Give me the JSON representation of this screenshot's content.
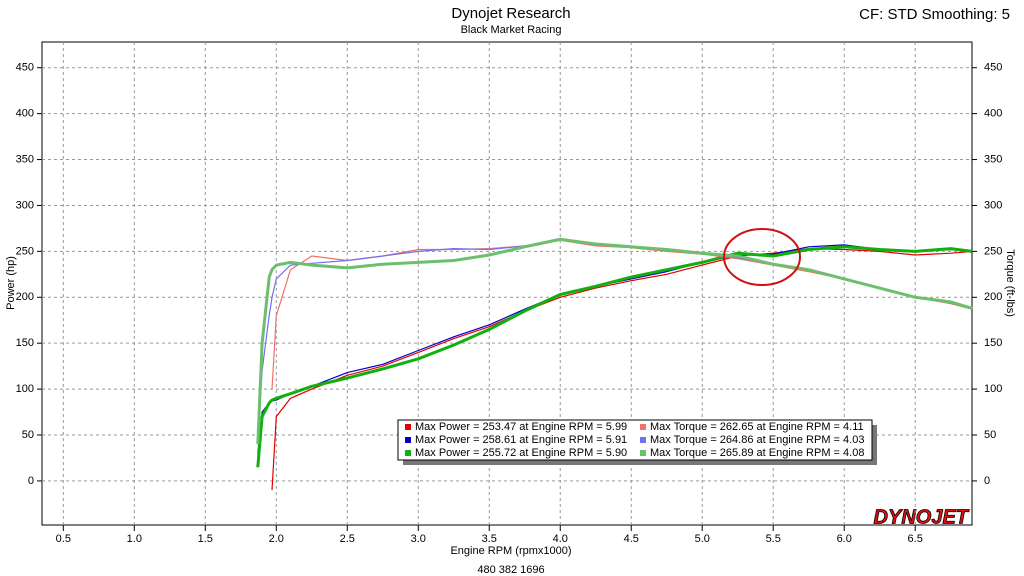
{
  "chart_data": {
    "type": "line",
    "title": "Dynojet Research",
    "subtitle": "Black Market Racing",
    "settings_label": "CF: STD Smoothing: 5",
    "x_label": "Engine RPM (rpmx1000)",
    "y_label": "Power (hp)",
    "y2_label": "Torque (ft-lbs)",
    "footer": "480 382 1696",
    "logo": "DYNOJET",
    "grid": true,
    "xlim": [
      0.35,
      6.9
    ],
    "ylim": [
      -48,
      478
    ],
    "y2lim": [
      -48,
      478
    ],
    "xticks": [
      0.5,
      {
        "value": 1,
        "label": "1.0"
      },
      1.5,
      {
        "value": 2,
        "label": "2.0"
      },
      2.5,
      {
        "value": 3,
        "label": "3.0"
      },
      3.5,
      {
        "value": 4,
        "label": "4.0"
      },
      4.5,
      {
        "value": 5,
        "label": "5.0"
      },
      5.5,
      {
        "value": 6,
        "label": "6.0"
      },
      6.5
    ],
    "yticks": [
      0,
      50,
      100,
      150,
      200,
      250,
      300,
      350,
      400,
      450
    ],
    "y2ticks": [
      0,
      50,
      100,
      150,
      200,
      250,
      300,
      350,
      400,
      450
    ],
    "x": [
      1.87,
      1.9,
      1.95,
      1.97,
      2.0,
      2.1,
      2.25,
      2.5,
      2.75,
      3.0,
      3.25,
      3.5,
      3.75,
      4.0,
      4.25,
      4.5,
      4.75,
      5.0,
      5.25,
      5.5,
      5.75,
      6.0,
      6.25,
      6.5,
      6.75,
      6.9
    ],
    "series": [
      {
        "name": "Max Power = 253.47 at Engine RPM = 5.99",
        "color": "#e00000",
        "width": 1.2,
        "values": [
          null,
          null,
          null,
          -10,
          70,
          90,
          100,
          115,
          125,
          140,
          155,
          168,
          185,
          200,
          210,
          218,
          225,
          235,
          245,
          248,
          253,
          252,
          250,
          246,
          248,
          250
        ]
      },
      {
        "name": "Max Power = 258.61 at Engine RPM = 5.91",
        "color": "#0000c8",
        "width": 1.2,
        "values": [
          30,
          75,
          85,
          87,
          88,
          95,
          103,
          118,
          127,
          142,
          157,
          170,
          187,
          203,
          212,
          220,
          228,
          238,
          246,
          247,
          255,
          257,
          252,
          250,
          252,
          250
        ]
      },
      {
        "name": "Max Power = 255.72 at Engine RPM = 5.90",
        "color": "#10b010",
        "width": 3,
        "values": [
          15,
          70,
          85,
          88,
          90,
          95,
          103,
          112,
          122,
          133,
          148,
          165,
          185,
          203,
          212,
          222,
          230,
          238,
          248,
          245,
          252,
          255,
          252,
          250,
          253,
          250
        ]
      },
      {
        "name": "Max Torque = 262.65 at Engine RPM = 4.11",
        "color": "#f07070",
        "width": 1.2,
        "axis": "y2",
        "values": [
          null,
          null,
          null,
          100,
          180,
          230,
          245,
          240,
          245,
          252,
          252,
          253,
          256,
          262,
          256,
          254,
          250,
          247,
          242,
          235,
          228,
          220,
          210,
          200,
          193,
          187
        ]
      },
      {
        "name": "Max Torque = 264.86 at Engine RPM = 4.03",
        "color": "#7070f0",
        "width": 1.2,
        "axis": "y2",
        "values": [
          45,
          120,
          180,
          200,
          220,
          235,
          237,
          240,
          245,
          250,
          253,
          252,
          256,
          264,
          258,
          255,
          251,
          248,
          243,
          236,
          230,
          220,
          210,
          200,
          194,
          188
        ]
      },
      {
        "name": "Max Torque = 265.89 at Engine RPM = 4.08",
        "color": "#6cbf6c",
        "width": 3,
        "axis": "y2",
        "values": [
          40,
          150,
          222,
          230,
          235,
          238,
          235,
          232,
          236,
          238,
          240,
          246,
          255,
          263,
          258,
          255,
          252,
          248,
          245,
          236,
          230,
          220,
          210,
          200,
          195,
          188
        ]
      }
    ]
  }
}
